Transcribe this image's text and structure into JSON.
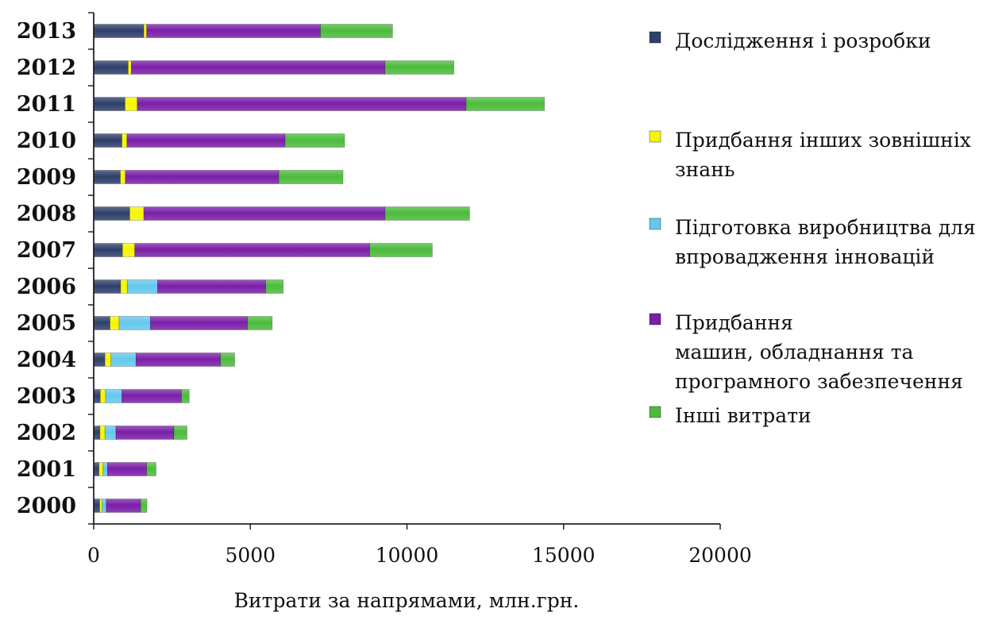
{
  "chart_data": {
    "type": "bar",
    "orientation": "horizontal",
    "stacked": true,
    "title": "",
    "xlabel": "Витрати за напрямами, млн.грн.",
    "ylabel": "",
    "xlim": [
      0,
      20000
    ],
    "xticks": [
      0,
      5000,
      10000,
      15000,
      20000
    ],
    "grid": false,
    "legend_position": "right",
    "categories": [
      "2000",
      "2001",
      "2002",
      "2003",
      "2004",
      "2005",
      "2006",
      "2007",
      "2008",
      "2009",
      "2010",
      "2011",
      "2012",
      "2013"
    ],
    "series": [
      {
        "name": "Дослідження і розробки",
        "color": "#2e3f6b",
        "values": [
          190,
          170,
          200,
          210,
          360,
          520,
          860,
          920,
          1150,
          850,
          900,
          1000,
          1100,
          1600
        ]
      },
      {
        "name": "Придбання інших зовнішніх знань",
        "color": "#f5f500",
        "values": [
          80,
          130,
          160,
          170,
          190,
          290,
          210,
          390,
          450,
          160,
          160,
          390,
          100,
          90
        ]
      },
      {
        "name": "Підготовка виробництва для впровадження інновацій",
        "color": "#64c8ec",
        "values": [
          130,
          140,
          350,
          520,
          800,
          1000,
          970,
          0,
          0,
          0,
          0,
          0,
          0,
          0
        ]
      },
      {
        "name": "Придбання машин, обладнання та програмного забезпечення",
        "color": "#7a1fa8",
        "values": [
          1100,
          1250,
          1850,
          1900,
          2700,
          3100,
          3450,
          7500,
          7700,
          4900,
          5050,
          10500,
          8100,
          5550
        ]
      },
      {
        "name": "Інші витрати",
        "color": "#4cbb3c",
        "values": [
          200,
          300,
          420,
          250,
          450,
          790,
          560,
          2000,
          2700,
          2050,
          1900,
          2500,
          2200,
          2300
        ]
      }
    ]
  },
  "legend_labels": [
    [
      "Дослідження і розробки"
    ],
    [
      "Придбання інших зовнішніх",
      "знань"
    ],
    [
      "Підготовка виробництва для",
      "впровадження інновацій"
    ],
    [
      "Придбання",
      "машин, обладнання та",
      "програмного забезпечення"
    ],
    [
      "Інші витрати"
    ]
  ]
}
